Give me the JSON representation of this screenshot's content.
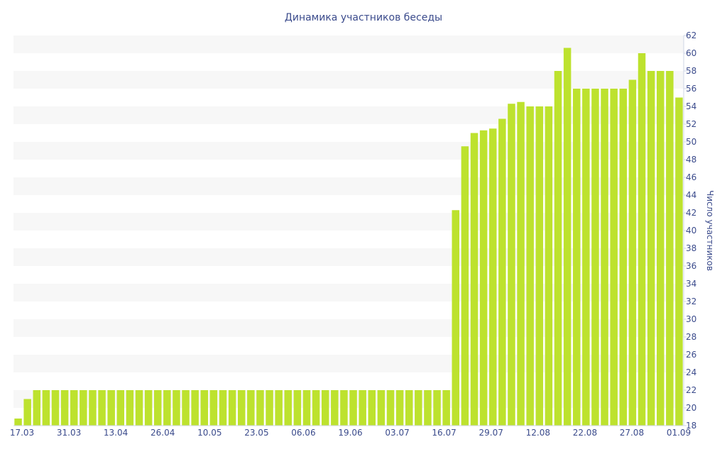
{
  "chart_data": {
    "type": "bar",
    "title": "Динамика участников беседы",
    "xlabel": "",
    "ylabel": "Число участников",
    "ylim": [
      18,
      62
    ],
    "ytick_step": 2,
    "grid": "horizontal bands",
    "legend": "none",
    "bar_color": "#bde22e",
    "band_color": "#f7f7f7",
    "text_color": "#3b4b8c",
    "x_tick_labels": [
      "17.03",
      "31.03",
      "13.04",
      "26.04",
      "10.05",
      "23.05",
      "06.06",
      "19.06",
      "03.07",
      "16.07",
      "29.07",
      "12.08",
      "22.08",
      "27.08",
      "01.09"
    ],
    "values": [
      18.8,
      21,
      22,
      22,
      22,
      22,
      22,
      22,
      22,
      22,
      22,
      22,
      22,
      22,
      22,
      22,
      22,
      22,
      22,
      22,
      22,
      22,
      22,
      22,
      22,
      22,
      22,
      22,
      22,
      22,
      22,
      22,
      22,
      22,
      22,
      22,
      22,
      22,
      22,
      22,
      22,
      22,
      22,
      22,
      22,
      22,
      22,
      42.3,
      49.5,
      51,
      51.3,
      51.5,
      52.6,
      54.3,
      54.5,
      54,
      54,
      54,
      58,
      60.6,
      56,
      56,
      56,
      56,
      56,
      56,
      57,
      60,
      58,
      58,
      58,
      55
    ]
  }
}
